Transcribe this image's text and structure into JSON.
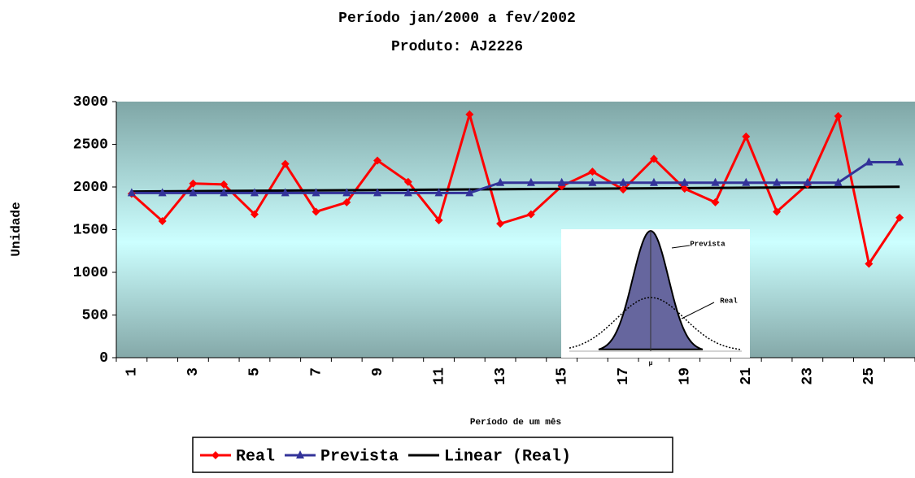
{
  "chart_data": {
    "type": "line",
    "title": "Período jan/2000 a fev/2002",
    "subtitle": "Produto: AJ2226",
    "x_label": "Período de um mês",
    "y_label": "Unidade",
    "categories": [
      "1",
      null,
      "3",
      null,
      "5",
      null,
      "7",
      null,
      "9",
      null,
      "11",
      null,
      "13",
      null,
      "15",
      null,
      "17",
      null,
      "19",
      null,
      "21",
      null,
      "23",
      null,
      "25",
      null
    ],
    "series": [
      {
        "name": "Real",
        "color": "#ff0000",
        "marker": "diamond",
        "values": [
          1920,
          1600,
          2040,
          2030,
          1680,
          2270,
          1710,
          1820,
          2310,
          2060,
          1610,
          2850,
          1570,
          1680,
          2010,
          2180,
          1970,
          2330,
          1980,
          1820,
          2590,
          1710,
          2030,
          2830,
          1100,
          1640
        ]
      },
      {
        "name": "Prevista",
        "color": "#333399",
        "marker": "triangle",
        "values": [
          1930,
          1930,
          1930,
          1930,
          1930,
          1930,
          1930,
          1930,
          1930,
          1930,
          1930,
          1930,
          2050,
          2050,
          2050,
          2050,
          2050,
          2050,
          2050,
          2050,
          2050,
          2050,
          2050,
          2050,
          2290,
          2290
        ]
      }
    ],
    "trendline": {
      "name": "Linear (Real)",
      "color": "#000000"
    },
    "ylim": [
      0,
      3000
    ],
    "yticks": [
      0,
      500,
      1000,
      1500,
      2000,
      2500,
      3000
    ],
    "grid": false,
    "legend": "bottom",
    "inset": {
      "labels": [
        "Prevista",
        "Real",
        "μ"
      ]
    }
  }
}
